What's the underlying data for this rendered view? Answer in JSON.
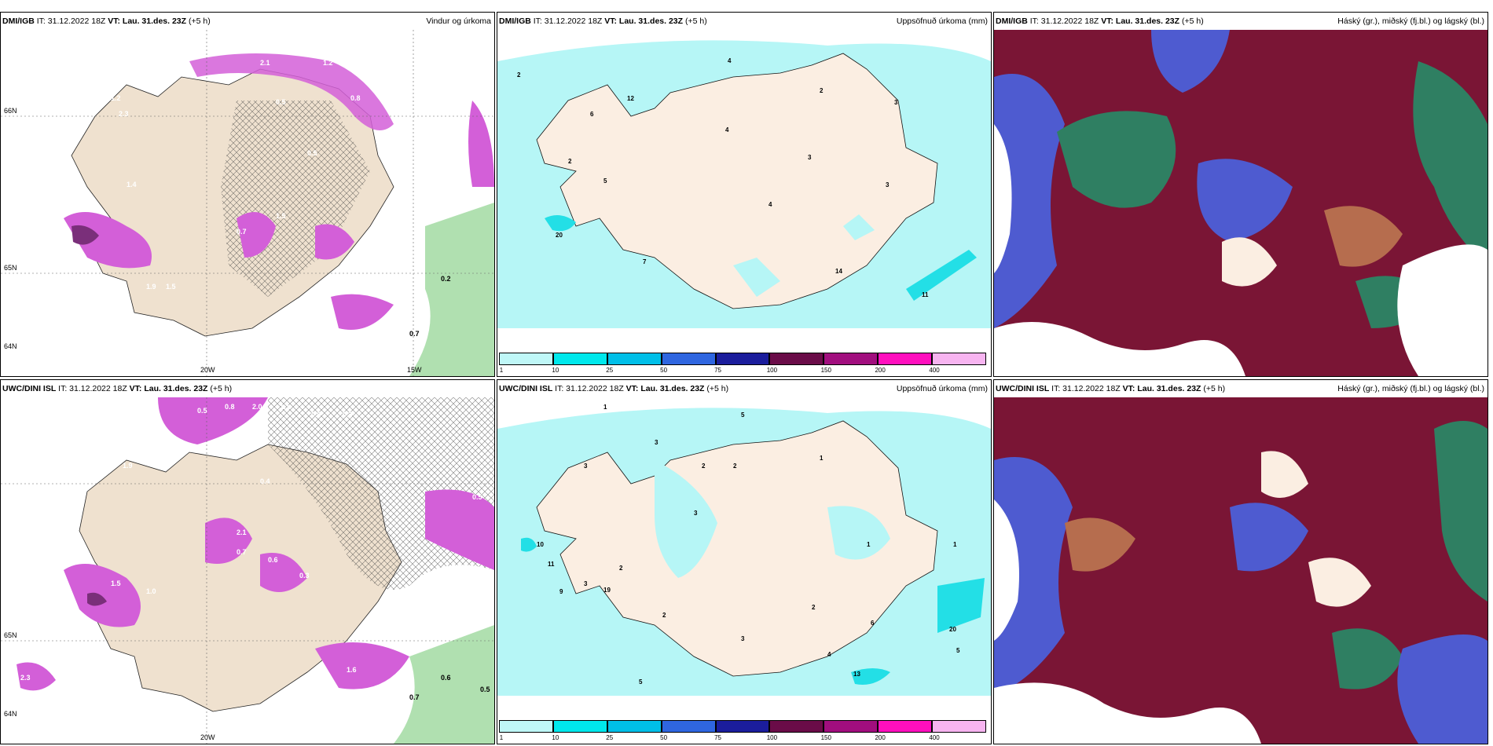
{
  "panels": [
    {
      "id": "dmi-wind",
      "model": "DMI/IGB",
      "it_label": "IT: 31.12.2022 18Z",
      "vt_label": "VT: Lau. 31.des. 23Z",
      "lead": "(+5 h)",
      "product": "Vindur og úrkoma",
      "axis_labels": [
        "20W",
        "15W",
        "66N",
        "64N",
        "65N"
      ],
      "values": [
        "1.2",
        "2.1",
        "0.8",
        "1.3",
        "0.9",
        "0.5",
        "0.3",
        "0.5",
        "1.2",
        "0.5",
        "1.5",
        "0.6",
        "2.3",
        "0.7",
        "1.5",
        "1.9",
        "1.4",
        "0.4",
        "0.6",
        "0.3",
        "1.9",
        "0.7",
        "0.2"
      ]
    },
    {
      "id": "dmi-precip",
      "model": "DMI/IGB",
      "it_label": "IT: 31.12.2022 18Z",
      "vt_label": "VT: Lau. 31.des. 23Z",
      "lead": "(+5 h)",
      "product": "Uppsöfnuð úrkoma (mm)",
      "values": [
        "2",
        "4",
        "12",
        "6",
        "2",
        "5",
        "4",
        "3",
        "2",
        "3",
        "3",
        "4",
        "20",
        "7",
        "14",
        "11"
      ]
    },
    {
      "id": "dmi-cloud",
      "model": "DMI/IGB",
      "it_label": "IT: 31.12.2022 18Z",
      "vt_label": "VT: Lau. 31.des. 23Z",
      "lead": "(+5 h)",
      "product": "Háský (gr.), miðský (fj.bl.) og lágský (bl.)"
    },
    {
      "id": "uwc-wind",
      "model": "UWC/DINI ISL",
      "it_label": "IT: 31.12.2022 18Z",
      "vt_label": "VT: Lau. 31.des. 23Z",
      "lead": "(+5 h)",
      "product": "",
      "axis_labels": [
        "20W",
        "64N",
        "65N"
      ],
      "values": [
        "0.5",
        "0.8",
        "2.0",
        "1.1",
        "0.6",
        "0.3",
        "1.9",
        "0.4",
        "0.5",
        "0.7",
        "2.1",
        "1.0",
        "0.3",
        "0.6",
        "1.6",
        "0.9",
        "1.0",
        "0.7",
        "2.3",
        "1.5",
        "0.7",
        "0.6",
        "0.5"
      ]
    },
    {
      "id": "uwc-precip",
      "model": "UWC/DINI ISL",
      "it_label": "IT: 31.12.2022 18Z",
      "vt_label": "VT: Lau. 31.des. 23Z",
      "lead": "(+5 h)",
      "product": "Uppsöfnuð úrkoma (mm)",
      "values": [
        "1",
        "5",
        "3",
        "3",
        "2",
        "2",
        "3",
        "1",
        "1",
        "10",
        "11",
        "19",
        "9",
        "3",
        "2",
        "2",
        "3",
        "2",
        "1",
        "20",
        "5",
        "13",
        "6",
        "4",
        "5"
      ]
    },
    {
      "id": "uwc-cloud",
      "model": "UWC/DINI ISL",
      "it_label": "IT: 31.12.2022 18Z",
      "vt_label": "VT: Lau. 31.des. 23Z",
      "lead": "(+5 h)",
      "product": "Háský (gr.), miðský (fj.bl.) og lágský (bl.)"
    }
  ],
  "colorbar": {
    "ticks": [
      "1",
      "10",
      "25",
      "50",
      "75",
      "100",
      "150",
      "200",
      "400"
    ],
    "colors": [
      "#bff7f7",
      "#00e8ec",
      "#00bfe8",
      "#2f66e0",
      "#1b1d9c",
      "#6a0c48",
      "#a10e7e",
      "#ff0fbe",
      "#f7b4f0"
    ]
  },
  "palette": {
    "land": "#fbeee2",
    "sea": "#ffffff",
    "precip_light": "#b6f6f6",
    "precip_mid": "#23dfe6",
    "wind_magenta": "#d35fd8",
    "wind_purple": "#7a2f7a",
    "cloud_high": "#7a1535",
    "cloud_mid": "#4e5bd0",
    "cloud_low": "#2f7f62",
    "cloud_brown": "#b66d4e"
  }
}
